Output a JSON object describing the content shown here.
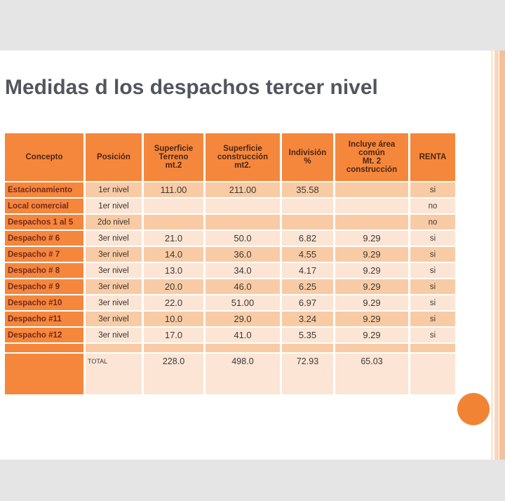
{
  "page": {
    "title": "Medidas d los despachos tercer nivel"
  },
  "colors": {
    "orange": "#f5873c",
    "band_dark": "#f9cba5",
    "band_light": "#fce5d5",
    "header_text": "#4b2513",
    "label_text": "#752a1c",
    "value_text": "#3b3a38",
    "title_text": "#51565e",
    "gray_band": "#e5e5e5",
    "circle": "#f18434",
    "stripe1": "#fbe7d6",
    "stripe2": "#f9d6bb",
    "stripe3": "#f3c09a"
  },
  "table": {
    "headers": [
      "Concepto",
      "Posición",
      "Superficie\nTerreno\nmt.2",
      "Superficie\nconstrucción\nmt2.",
      "Indivisión\n%",
      "Incluye área\ncomún\nMt. 2\nconstrucción",
      "RENTA"
    ],
    "rows": [
      {
        "type": "data",
        "concepto": "Estacionamiento",
        "posicion": "1er nivel",
        "terreno": "111.00",
        "construccion": "211.00",
        "indivision": "35.58",
        "comun": "",
        "renta": "si"
      },
      {
        "type": "data",
        "concepto": "Local comercial",
        "posicion": "1er nivel",
        "terreno": "",
        "construccion": "",
        "indivision": "",
        "comun": "",
        "renta": "no"
      },
      {
        "type": "data",
        "concepto": "Despachos 1 al 5",
        "posicion": "2do nivel",
        "terreno": "",
        "construccion": "",
        "indivision": "",
        "comun": "",
        "renta": "no"
      },
      {
        "type": "data",
        "concepto": "Despacho # 6",
        "posicion": "3er nivel",
        "terreno": "21.0",
        "construccion": "50.0",
        "indivision": "6.82",
        "comun": "9.29",
        "renta": "si"
      },
      {
        "type": "data",
        "concepto": "Despacho # 7",
        "posicion": "3er nivel",
        "terreno": "14.0",
        "construccion": "36.0",
        "indivision": "4.55",
        "comun": "9.29",
        "renta": "si"
      },
      {
        "type": "data",
        "concepto": "Despacho # 8",
        "posicion": "3er nivel",
        "terreno": "13.0",
        "construccion": "34.0",
        "indivision": "4.17",
        "comun": "9.29",
        "renta": "si"
      },
      {
        "type": "data",
        "concepto": "Despacho # 9",
        "posicion": "3er nivel",
        "terreno": "20.0",
        "construccion": "46.0",
        "indivision": "6.25",
        "comun": "9.29",
        "renta": "si"
      },
      {
        "type": "data",
        "concepto": "Despacho #10",
        "posicion": "3er nivel",
        "terreno": "22.0",
        "construccion": "51.00",
        "indivision": "6.97",
        "comun": "9.29",
        "renta": "si"
      },
      {
        "type": "data",
        "concepto": "Despacho #11",
        "posicion": "3er nivel",
        "terreno": "10.0",
        "construccion": "29.0",
        "indivision": "3.24",
        "comun": "9.29",
        "renta": "si"
      },
      {
        "type": "data",
        "concepto": "Despacho #12",
        "posicion": "3er nivel",
        "terreno": "17.0",
        "construccion": "41.0",
        "indivision": "5.35",
        "comun": "9.29",
        "renta": "si"
      },
      {
        "type": "spacer",
        "concepto": "",
        "posicion": "",
        "terreno": "",
        "construccion": "",
        "indivision": "",
        "comun": "",
        "renta": ""
      },
      {
        "type": "total",
        "concepto": "",
        "posicion": "TOTAL",
        "terreno": "228.0",
        "construccion": "498.0",
        "indivision": "72.93",
        "comun": "65.03",
        "renta": ""
      }
    ]
  }
}
